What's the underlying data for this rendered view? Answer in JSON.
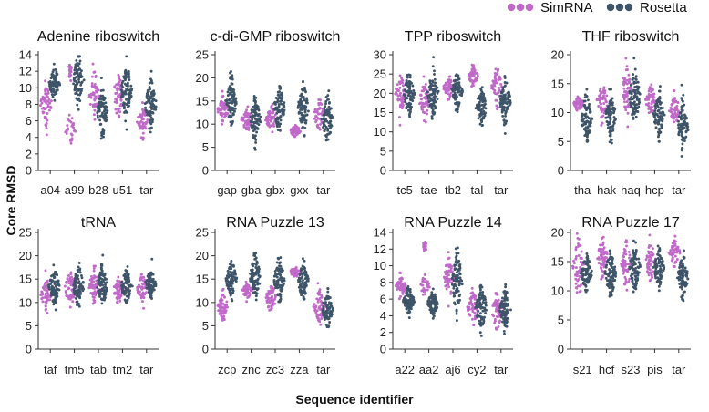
{
  "figure": {
    "ylabel": "Core RMSD",
    "xlabel": "Sequence identifier",
    "legend": [
      {
        "name": "SimRNA",
        "color": "#c069c9"
      },
      {
        "name": "Rosetta",
        "color": "#3e5468"
      }
    ]
  },
  "chart_data": [
    {
      "type": "scatter",
      "title": "Adenine riboswitch",
      "ylim": [
        0,
        14
      ],
      "yticks": [
        0,
        2,
        4,
        6,
        8,
        10,
        12,
        14
      ],
      "categories": [
        "a04",
        "a99",
        "b28",
        "u51",
        "tar"
      ],
      "simrna": [
        {
          "median": 8.0,
          "spread": 1.4
        },
        {
          "median": 5.0,
          "spread": 0.9,
          "median2": 12.0,
          "spread2": 0.5
        },
        {
          "median": 9.0,
          "spread": 1.4
        },
        {
          "median": 9.0,
          "spread": 1.3
        },
        {
          "median": 6.0,
          "spread": 0.9
        }
      ],
      "rosetta": [
        {
          "median": 10.5,
          "spread": 0.9
        },
        {
          "median": 11.0,
          "spread": 1.5
        },
        {
          "median": 7.0,
          "spread": 1.3
        },
        {
          "median": 9.5,
          "spread": 1.6
        },
        {
          "median": 8.0,
          "spread": 1.6
        }
      ]
    },
    {
      "type": "scatter",
      "title": "c-di-GMP riboswitch",
      "ylim": [
        0,
        25
      ],
      "yticks": [
        0,
        5,
        10,
        15,
        20,
        25
      ],
      "categories": [
        "gap",
        "gba",
        "gbx",
        "gxx",
        "tar"
      ],
      "simrna": [
        {
          "median": 13.0,
          "spread": 1.3
        },
        {
          "median": 11.0,
          "spread": 1.3
        },
        {
          "median": 11.0,
          "spread": 1.4
        },
        {
          "median": 8.5,
          "spread": 0.6
        },
        {
          "median": 12.0,
          "spread": 1.5
        }
      ],
      "rosetta": [
        {
          "median": 15.0,
          "spread": 2.5
        },
        {
          "median": 11.0,
          "spread": 2.2
        },
        {
          "median": 13.5,
          "spread": 2.6
        },
        {
          "median": 13.5,
          "spread": 2.5
        },
        {
          "median": 11.0,
          "spread": 2.6
        }
      ]
    },
    {
      "type": "scatter",
      "title": "TPP riboswitch",
      "ylim": [
        0,
        30
      ],
      "yticks": [
        0,
        5,
        10,
        15,
        20,
        25,
        30
      ],
      "categories": [
        "tc5",
        "tae",
        "tb2",
        "tal",
        "tar"
      ],
      "simrna": [
        {
          "median": 20.0,
          "spread": 2.2
        },
        {
          "median": 18.0,
          "spread": 2.3
        },
        {
          "median": 21.5,
          "spread": 1.2
        },
        {
          "median": 24.5,
          "spread": 1.1
        },
        {
          "median": 21.5,
          "spread": 2.2
        }
      ],
      "rosetta": [
        {
          "median": 20.0,
          "spread": 2.8
        },
        {
          "median": 20.0,
          "spread": 2.8
        },
        {
          "median": 20.5,
          "spread": 2.2
        },
        {
          "median": 16.5,
          "spread": 2.6
        },
        {
          "median": 18.0,
          "spread": 2.8
        }
      ]
    },
    {
      "type": "scatter",
      "title": "THF riboswitch",
      "ylim": [
        0,
        20
      ],
      "yticks": [
        0,
        5,
        10,
        15,
        20
      ],
      "categories": [
        "tha",
        "hak",
        "haq",
        "hcp",
        "tar"
      ],
      "simrna": [
        {
          "median": 11.5,
          "spread": 0.6
        },
        {
          "median": 12.0,
          "spread": 1.6
        },
        {
          "median": 14.0,
          "spread": 1.9
        },
        {
          "median": 12.0,
          "spread": 1.3
        },
        {
          "median": 10.5,
          "spread": 1.2
        }
      ],
      "rosetta": [
        {
          "median": 9.0,
          "spread": 2.0
        },
        {
          "median": 9.5,
          "spread": 1.8
        },
        {
          "median": 13.0,
          "spread": 2.5
        },
        {
          "median": 9.5,
          "spread": 1.7
        },
        {
          "median": 7.5,
          "spread": 1.9
        }
      ]
    },
    {
      "type": "scatter",
      "title": "tRNA",
      "ylim": [
        0,
        25
      ],
      "yticks": [
        0,
        5,
        10,
        15,
        20,
        25
      ],
      "categories": [
        "taf",
        "tm5",
        "tab",
        "tm2",
        "tar"
      ],
      "simrna": [
        {
          "median": 11.5,
          "spread": 1.5
        },
        {
          "median": 13.0,
          "spread": 2.0
        },
        {
          "median": 13.5,
          "spread": 1.8
        },
        {
          "median": 12.5,
          "spread": 1.3
        },
        {
          "median": 13.0,
          "spread": 1.4
        }
      ],
      "rosetta": [
        {
          "median": 13.5,
          "spread": 1.8
        },
        {
          "median": 13.5,
          "spread": 2.0
        },
        {
          "median": 13.5,
          "spread": 2.0
        },
        {
          "median": 13.5,
          "spread": 1.8
        },
        {
          "median": 14.0,
          "spread": 1.4
        }
      ]
    },
    {
      "type": "scatter",
      "title": "RNA Puzzle 13",
      "ylim": [
        0,
        25
      ],
      "yticks": [
        0,
        5,
        10,
        15,
        20,
        25
      ],
      "categories": [
        "zcp",
        "znc",
        "zc3",
        "zza",
        "tar"
      ],
      "simrna": [
        {
          "median": 9.0,
          "spread": 1.5
        },
        {
          "median": 12.5,
          "spread": 0.8
        },
        {
          "median": 11.0,
          "spread": 1.5
        },
        {
          "median": 16.5,
          "spread": 0.5
        },
        {
          "median": 9.0,
          "spread": 1.6
        }
      ],
      "rosetta": [
        {
          "median": 15.0,
          "spread": 2.0
        },
        {
          "median": 15.5,
          "spread": 2.2
        },
        {
          "median": 15.0,
          "spread": 2.3
        },
        {
          "median": 14.5,
          "spread": 1.8
        },
        {
          "median": 8.5,
          "spread": 2.0
        }
      ]
    },
    {
      "type": "scatter",
      "title": "RNA Puzzle 14",
      "ylim": [
        0,
        14
      ],
      "yticks": [
        0,
        2,
        4,
        6,
        8,
        10,
        12,
        14
      ],
      "categories": [
        "a22",
        "aa2",
        "aj6",
        "cy2",
        "tar"
      ],
      "simrna": [
        {
          "median": 7.5,
          "spread": 0.6
        },
        {
          "median": 7.5,
          "spread": 0.6,
          "median2": 12.3,
          "spread2": 0.3
        },
        {
          "median": 8.5,
          "spread": 1.2
        },
        {
          "median": 5.0,
          "spread": 1.0
        },
        {
          "median": 4.5,
          "spread": 1.0
        }
      ],
      "rosetta": [
        {
          "median": 5.8,
          "spread": 0.7
        },
        {
          "median": 5.5,
          "spread": 0.7
        },
        {
          "median": 8.0,
          "spread": 1.8
        },
        {
          "median": 5.0,
          "spread": 1.4
        },
        {
          "median": 4.8,
          "spread": 1.2
        }
      ]
    },
    {
      "type": "scatter",
      "title": "RNA Puzzle 17",
      "ylim": [
        0,
        20
      ],
      "yticks": [
        0,
        5,
        10,
        15,
        20
      ],
      "categories": [
        "s21",
        "hcf",
        "s23",
        "pis",
        "tar"
      ],
      "simrna": [
        {
          "median": 14.0,
          "spread": 2.6
        },
        {
          "median": 16.0,
          "spread": 1.6
        },
        {
          "median": 14.5,
          "spread": 2.0
        },
        {
          "median": 15.0,
          "spread": 1.5
        },
        {
          "median": 16.5,
          "spread": 1.0
        }
      ],
      "rosetta": [
        {
          "median": 13.0,
          "spread": 1.5
        },
        {
          "median": 13.0,
          "spread": 2.0
        },
        {
          "median": 14.0,
          "spread": 1.8
        },
        {
          "median": 14.0,
          "spread": 1.6
        },
        {
          "median": 12.5,
          "spread": 1.9
        }
      ]
    }
  ]
}
